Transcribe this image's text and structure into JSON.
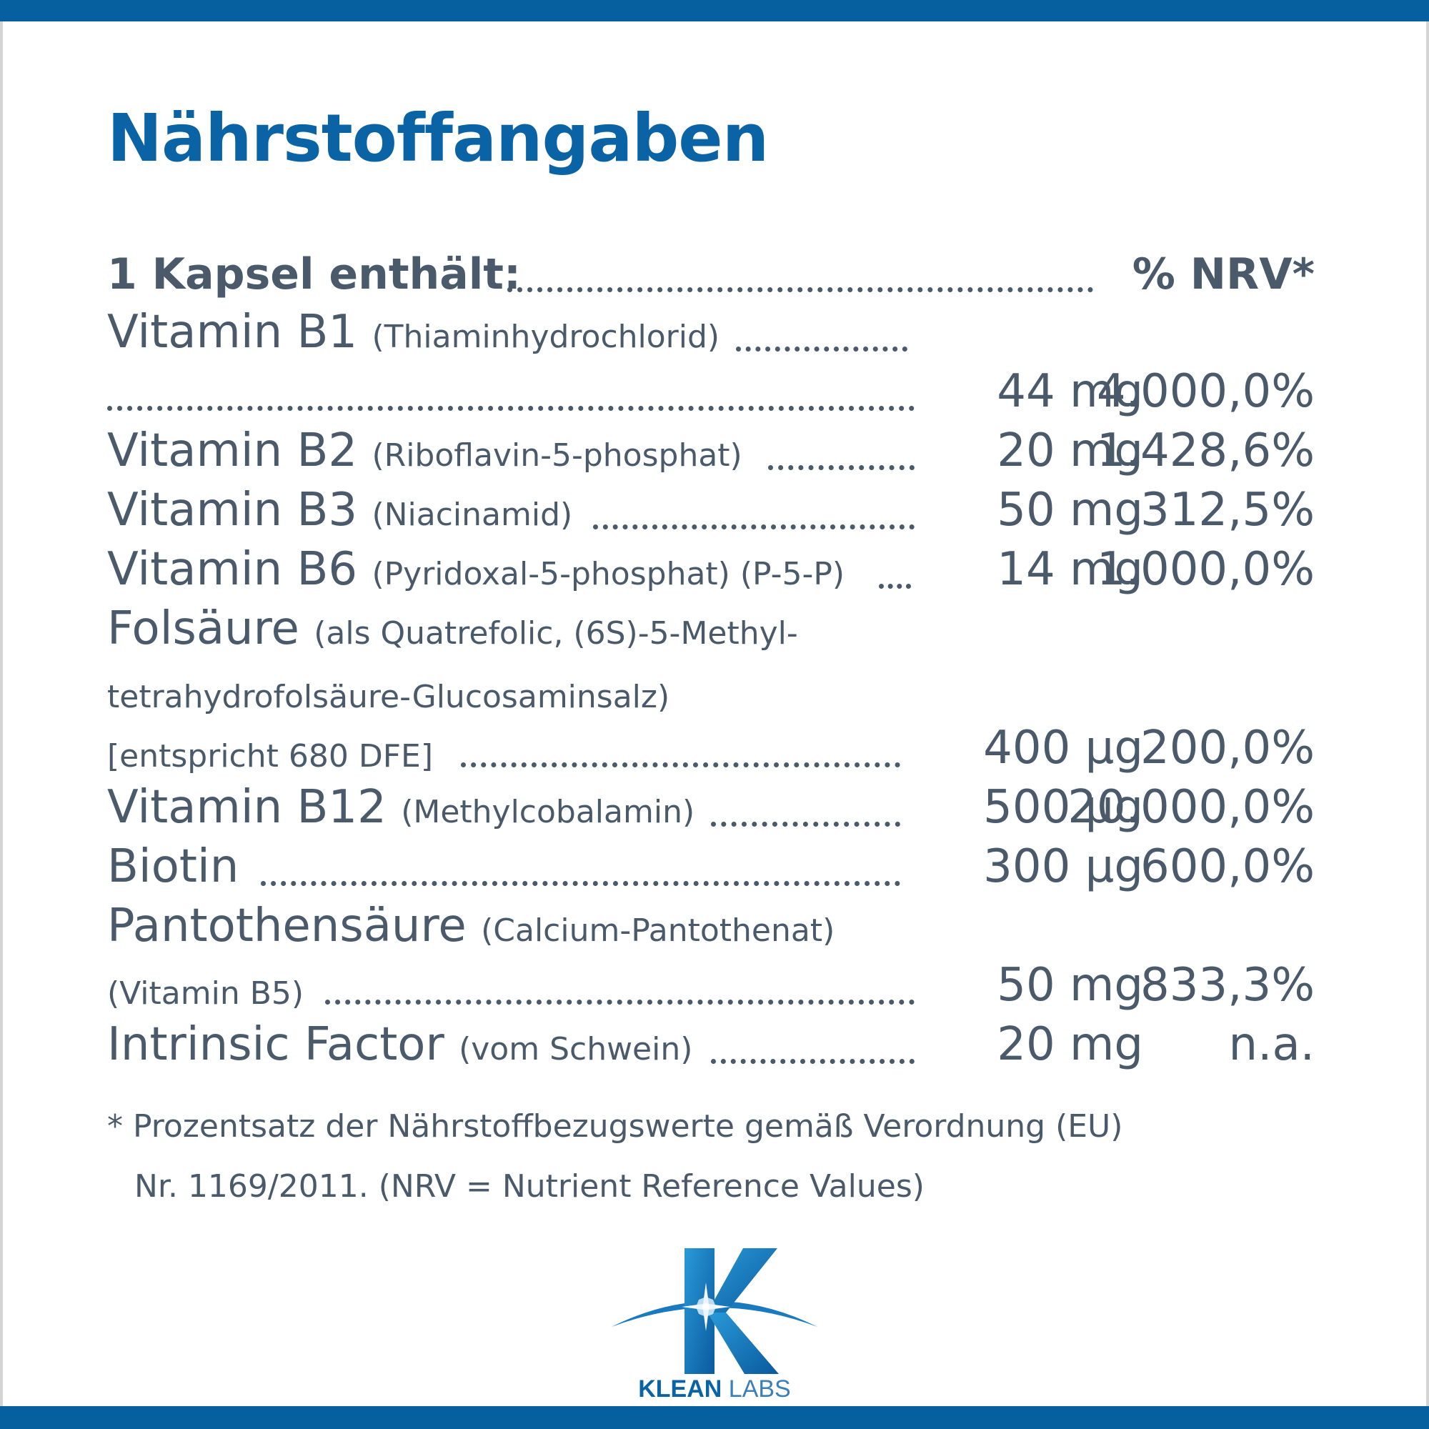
{
  "title": "Nährstoffangaben",
  "header": {
    "left": "1 Kapsel enthält:",
    "right": "% NRV*"
  },
  "rows": [
    {
      "name": "Vitamin B1",
      "note": "(Thiaminhydrochlorid)",
      "amount": "",
      "pct": ""
    },
    {
      "name": "",
      "note": "",
      "amount": "44 mg",
      "pct": "4.000,0%"
    },
    {
      "name": "Vitamin B2",
      "note": "(Riboflavin-5-phosphat)",
      "amount": "20 mg",
      "pct": "1.428,6%"
    },
    {
      "name": "Vitamin B3",
      "note": "(Niacinamid)",
      "amount": "50 mg",
      "pct": "312,5%"
    },
    {
      "name": "Vitamin B6",
      "note": "(Pyridoxal-5-phosphat) (P-5-P)",
      "amount": "14 mg",
      "pct": "1.000,0%"
    },
    {
      "name": "Folsäure",
      "note": "(als Quatrefolic, (6S)-5-Methyl-",
      "amount": "",
      "pct": ""
    },
    {
      "name": "",
      "note": "tetrahydrofolsäure-Glucosaminsalz)",
      "amount": "",
      "pct": ""
    },
    {
      "name": "",
      "note": "[entspricht 680 DFE]",
      "amount": "400 µg",
      "pct": "200,0%"
    },
    {
      "name": "Vitamin B12",
      "note": "(Methylcobalamin)",
      "amount": "500 µg",
      "pct": "20.000,0%"
    },
    {
      "name": "Biotin",
      "note": "",
      "amount": "300 µg",
      "pct": "600,0%"
    },
    {
      "name": "Pantothensäure",
      "note": "(Calcium-Pantothenat)",
      "amount": "",
      "pct": ""
    },
    {
      "name": "",
      "note": "(Vitamin B5)",
      "amount": "50 mg",
      "pct": "833,3%"
    },
    {
      "name": "Intrinsic Factor",
      "note": "(vom Schwein)",
      "amount": "20 mg",
      "pct": "n.a."
    }
  ],
  "footnote": {
    "line1": "* Prozentsatz der Nährstoffbezugswerte gemäß Verordnung (EU)",
    "line2": "Nr. 1169/2011. (NRV = Nutrient Reference Values)"
  },
  "logo": {
    "word1": "KLEAN",
    "word2": "LABS",
    "icon": "klean-labs-k-star-logo"
  },
  "colors": {
    "brand_blue": "#0a63a5",
    "bar_blue": "#06609f",
    "text_gray": "#4a5a6a"
  }
}
